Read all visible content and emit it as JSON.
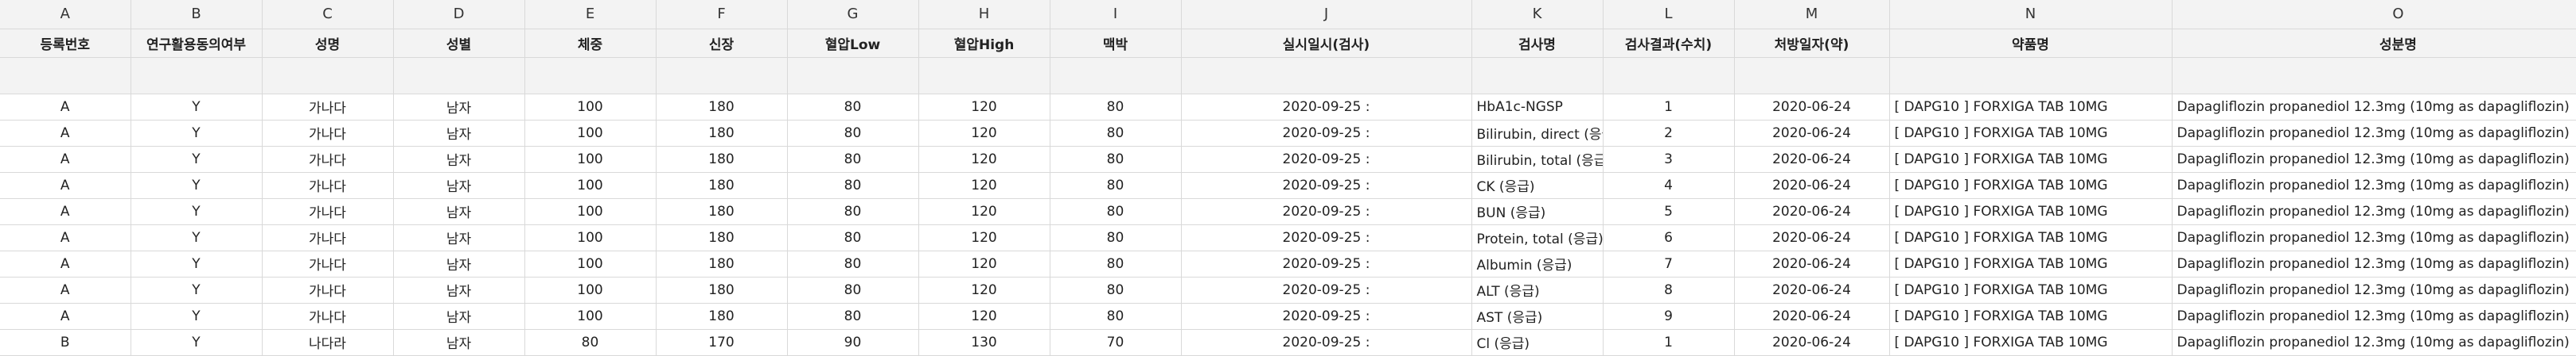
{
  "columns": [
    "A",
    "B",
    "C",
    "D",
    "E",
    "F",
    "G",
    "H",
    "I",
    "J",
    "K",
    "L",
    "M",
    "N",
    "O"
  ],
  "headers": [
    "등록번호",
    "연구활용동의여부",
    "성명",
    "성별",
    "체중",
    "신장",
    "혈압Low",
    "혈압High",
    "맥박",
    "실시일시(검사)",
    "검사명",
    "검사결과(수치)",
    "처방일자(약)",
    "약품명",
    "성분명"
  ],
  "rows": [
    [
      "A",
      "Y",
      "가나다",
      "남자",
      "100",
      "180",
      "80",
      "120",
      "80",
      "2020-09-25 :",
      "HbA1c-NGSP",
      "1",
      "2020-06-24",
      "[ DAPG10 ] FORXIGA TAB 10MG",
      "Dapagliflozin propanediol 12.3mg (10mg as dapagliflozin)"
    ],
    [
      "A",
      "Y",
      "가나다",
      "남자",
      "100",
      "180",
      "80",
      "120",
      "80",
      "2020-09-25 :",
      "Bilirubin, direct (응급",
      "2",
      "2020-06-24",
      "[ DAPG10 ] FORXIGA TAB 10MG",
      "Dapagliflozin propanediol 12.3mg (10mg as dapagliflozin)"
    ],
    [
      "A",
      "Y",
      "가나다",
      "남자",
      "100",
      "180",
      "80",
      "120",
      "80",
      "2020-09-25 :",
      "Bilirubin, total (응급)",
      "3",
      "2020-06-24",
      "[ DAPG10 ] FORXIGA TAB 10MG",
      "Dapagliflozin propanediol 12.3mg (10mg as dapagliflozin)"
    ],
    [
      "A",
      "Y",
      "가나다",
      "남자",
      "100",
      "180",
      "80",
      "120",
      "80",
      "2020-09-25 :",
      "CK (응급)",
      "4",
      "2020-06-24",
      "[ DAPG10 ] FORXIGA TAB 10MG",
      "Dapagliflozin propanediol 12.3mg (10mg as dapagliflozin)"
    ],
    [
      "A",
      "Y",
      "가나다",
      "남자",
      "100",
      "180",
      "80",
      "120",
      "80",
      "2020-09-25 :",
      "BUN (응급)",
      "5",
      "2020-06-24",
      "[ DAPG10 ] FORXIGA TAB 10MG",
      "Dapagliflozin propanediol 12.3mg (10mg as dapagliflozin)"
    ],
    [
      "A",
      "Y",
      "가나다",
      "남자",
      "100",
      "180",
      "80",
      "120",
      "80",
      "2020-09-25 :",
      "Protein, total (응급)",
      "6",
      "2020-06-24",
      "[ DAPG10 ] FORXIGA TAB 10MG",
      "Dapagliflozin propanediol 12.3mg (10mg as dapagliflozin)"
    ],
    [
      "A",
      "Y",
      "가나다",
      "남자",
      "100",
      "180",
      "80",
      "120",
      "80",
      "2020-09-25 :",
      "Albumin (응급)",
      "7",
      "2020-06-24",
      "[ DAPG10 ] FORXIGA TAB 10MG",
      "Dapagliflozin propanediol 12.3mg (10mg as dapagliflozin)"
    ],
    [
      "A",
      "Y",
      "가나다",
      "남자",
      "100",
      "180",
      "80",
      "120",
      "80",
      "2020-09-25 :",
      "ALT (응급)",
      "8",
      "2020-06-24",
      "[ DAPG10 ] FORXIGA TAB 10MG",
      "Dapagliflozin propanediol 12.3mg (10mg as dapagliflozin)"
    ],
    [
      "A",
      "Y",
      "가나다",
      "남자",
      "100",
      "180",
      "80",
      "120",
      "80",
      "2020-09-25 :",
      "AST (응급)",
      "9",
      "2020-06-24",
      "[ DAPG10 ] FORXIGA TAB 10MG",
      "Dapagliflozin propanediol 12.3mg (10mg as dapagliflozin)"
    ],
    [
      "B",
      "Y",
      "나다라",
      "남자",
      "80",
      "170",
      "90",
      "130",
      "70",
      "2020-09-25 :",
      "Cl (응급)",
      "1",
      "2020-06-24",
      "[ DAPG10 ] FORXIGA TAB 10MG",
      "Dapagliflozin propanediol 12.3mg (10mg as dapagliflozin)"
    ]
  ]
}
